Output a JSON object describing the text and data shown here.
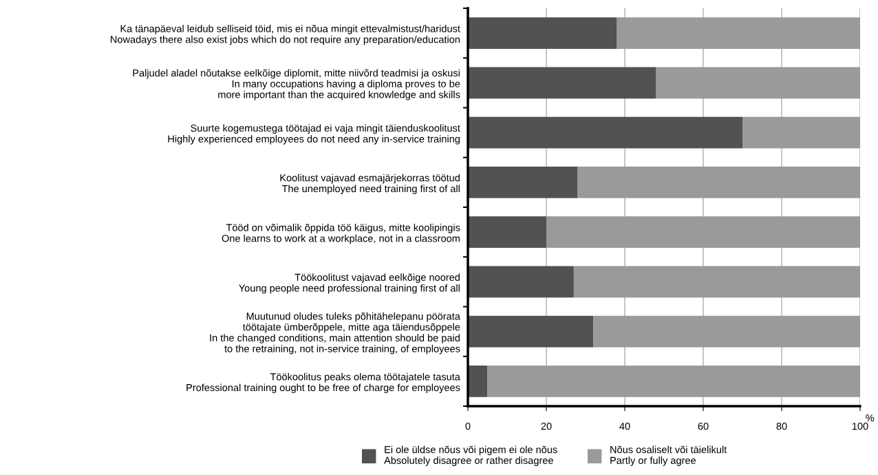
{
  "chart_data": {
    "type": "bar",
    "orientation": "horizontal",
    "stacked": true,
    "categories": [
      "Ka tänapäeval leidub selliseid töid, mis ei nõua mingit ettevalmistust/haridust\nNowadays there also exist jobs which do not require any preparation/education",
      "Paljudel aladel nõutakse eelkõige diplomit, mitte niivõrd teadmisi ja oskusi\nIn many occupations having a diploma proves to be\nmore important than the acquired knowledge and skills",
      "Suurte kogemustega töötajad ei vaja mingit täienduskoolitust\nHighly experienced employees do not need any in-service training",
      "Koolitust vajavad esmajärjekorras töötud\nThe unemployed need training first of all",
      "Tööd on võimalik õppida töö käigus, mitte koolipingis\nOne learns to work at a workplace, not in a classroom",
      "Töökoolitust vajavad eelkõige noored\nYoung people need professional training first of all",
      "Muutunud oludes tuleks põhitähelepanu pöörata\ntöötajate ümberõppele, mitte aga täiendusõppele\nIn the changed conditions, main attention should be paid\nto the retraining, not in-service training, of employees",
      "Töökoolitus peaks olema töötajatele tasuta\nProfessional training ought to be free of charge for employees"
    ],
    "series": [
      {
        "name": "Ei ole üldse nõus või pigem ei ole nõus\nAbsolutely disagree or rather disagree",
        "color": "#525252",
        "values": [
          38,
          48,
          70,
          28,
          20,
          27,
          32,
          5
        ]
      },
      {
        "name": "Nõus osaliselt või täielikult\nPartly or fully agree",
        "color": "#9a9a9a",
        "values": [
          62,
          52,
          30,
          72,
          80,
          73,
          68,
          95
        ]
      }
    ],
    "xlim": [
      0,
      100
    ],
    "xticks": [
      0,
      20,
      40,
      60,
      80,
      100
    ],
    "annotations": [
      "%"
    ],
    "grid": "x",
    "legend": "bottom"
  }
}
